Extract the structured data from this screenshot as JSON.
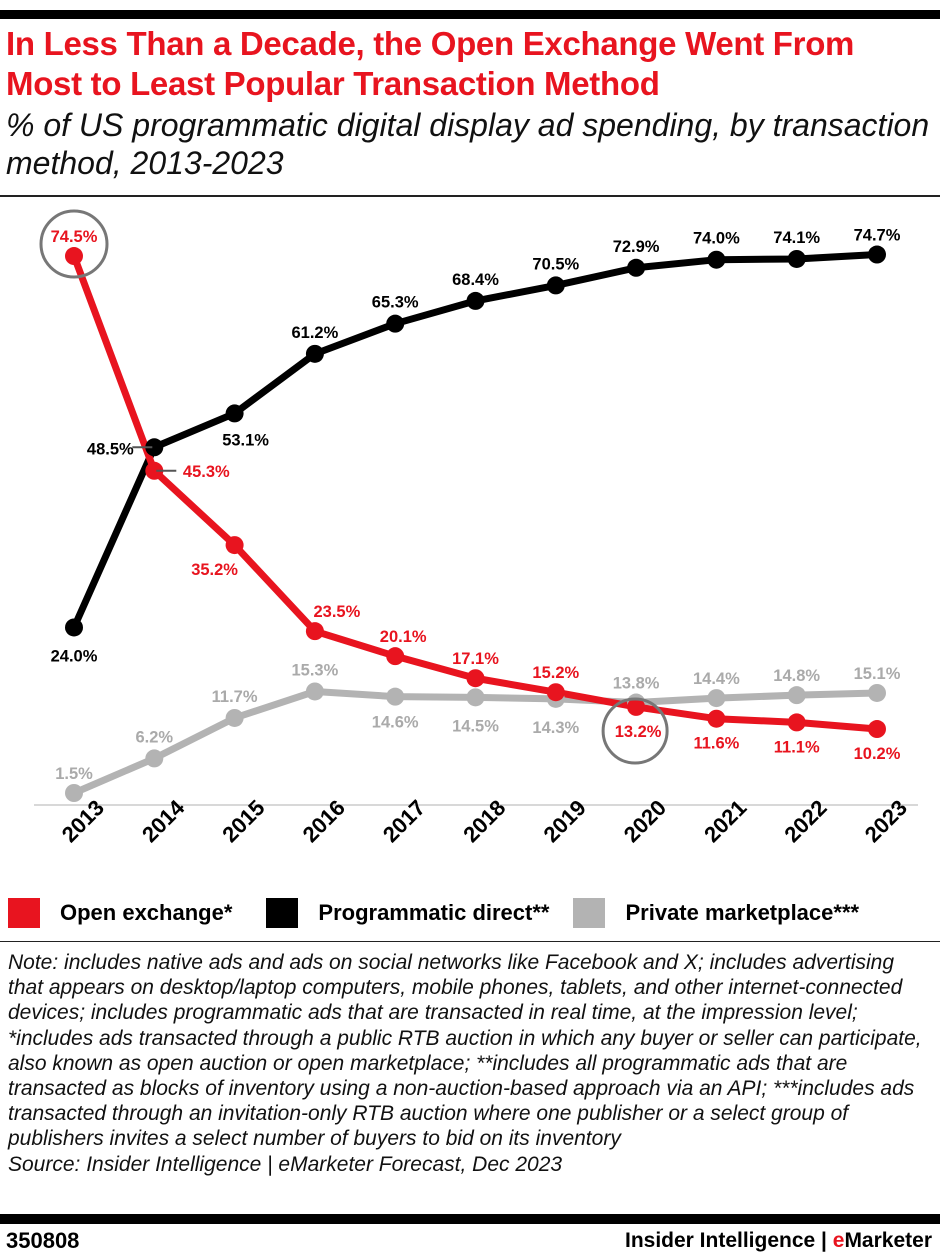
{
  "title": "In Less Than a Decade, the Open Exchange Went From Most to Least Popular Transaction Method",
  "subtitle": "% of US programmatic digital display ad spending, by transaction method, 2013-2023",
  "chart_data": {
    "type": "line",
    "categories": [
      "2013",
      "2014",
      "2015",
      "2016",
      "2017",
      "2018",
      "2019",
      "2020",
      "2021",
      "2022",
      "2023"
    ],
    "ylim": [
      0,
      76
    ],
    "grid": false,
    "legend_position": "bottom",
    "series": [
      {
        "name": "Open exchange*",
        "color": "#e8141f",
        "values": [
          74.5,
          45.3,
          35.2,
          23.5,
          20.1,
          17.1,
          15.2,
          13.2,
          11.6,
          11.1,
          10.2
        ]
      },
      {
        "name": "Programmatic direct**",
        "color": "#000000",
        "values": [
          24.0,
          48.5,
          53.1,
          61.2,
          65.3,
          68.4,
          70.5,
          72.9,
          74.0,
          74.1,
          74.7
        ]
      },
      {
        "name": "Private marketplace***",
        "color": "#b3b3b3",
        "values": [
          1.5,
          6.2,
          11.7,
          15.3,
          14.6,
          14.5,
          14.3,
          13.8,
          14.4,
          14.8,
          15.1
        ]
      }
    ],
    "highlighted_points": [
      {
        "series": "Open exchange*",
        "category": "2013"
      },
      {
        "series": "Open exchange*",
        "category": "2020"
      }
    ]
  },
  "legend": [
    {
      "label": "Open exchange*",
      "color": "#e8141f"
    },
    {
      "label": "Programmatic direct**",
      "color": "#000000"
    },
    {
      "label": "Private marketplace***",
      "color": "#b3b3b3"
    }
  ],
  "note": "Note: includes native ads and ads on social networks like Facebook and X; includes advertising that appears on desktop/laptop computers, mobile phones, tablets, and other internet-connected devices; includes programmatic ads that are transacted in real time, at the impression level; *includes ads transacted through a public RTB auction in which any buyer or seller can participate, also known as open auction or open marketplace; **includes all programmatic ads that are transacted as blocks of inventory using a non-auction-based approach via an API; ***includes ads transacted through an invitation-only RTB auction where one publisher or a select group of publishers invites a select number of buyers to bid on its inventory",
  "source": "Source: Insider Intelligence | eMarketer Forecast, Dec 2023",
  "footer": {
    "chart_id": "350808",
    "brand_prefix": "Insider Intelligence | ",
    "brand_e": "e",
    "brand_rest": "Marketer"
  }
}
